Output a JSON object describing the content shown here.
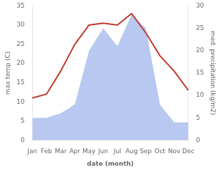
{
  "chart_data": {
    "type": "line",
    "xlabel": "date (month)",
    "ylabel": "max temp (C)",
    "y2label": "med. precipitation (kg/m2)",
    "categories": [
      "Jan",
      "Feb",
      "Mar",
      "Apr",
      "May",
      "Jun",
      "Jul",
      "Aug",
      "Sep",
      "Oct",
      "Nov",
      "Dec"
    ],
    "series": [
      {
        "type": "area",
        "axis": "y2",
        "color": "#b8c8f0",
        "values": [
          5,
          5,
          6,
          8,
          20,
          25,
          21,
          28,
          25,
          8,
          4,
          4
        ]
      },
      {
        "type": "line",
        "color": "#c0392b",
        "values": [
          11,
          12,
          18,
          25,
          30,
          30.5,
          30,
          33,
          28,
          22,
          18,
          13
        ]
      }
    ],
    "ylim": [
      0,
      35
    ],
    "yticks": [
      0,
      5,
      10,
      15,
      20,
      25,
      30,
      35
    ],
    "y2lim": [
      0,
      30
    ],
    "y2ticks": [
      0,
      5,
      10,
      15,
      20,
      25,
      30
    ],
    "grid": false
  }
}
